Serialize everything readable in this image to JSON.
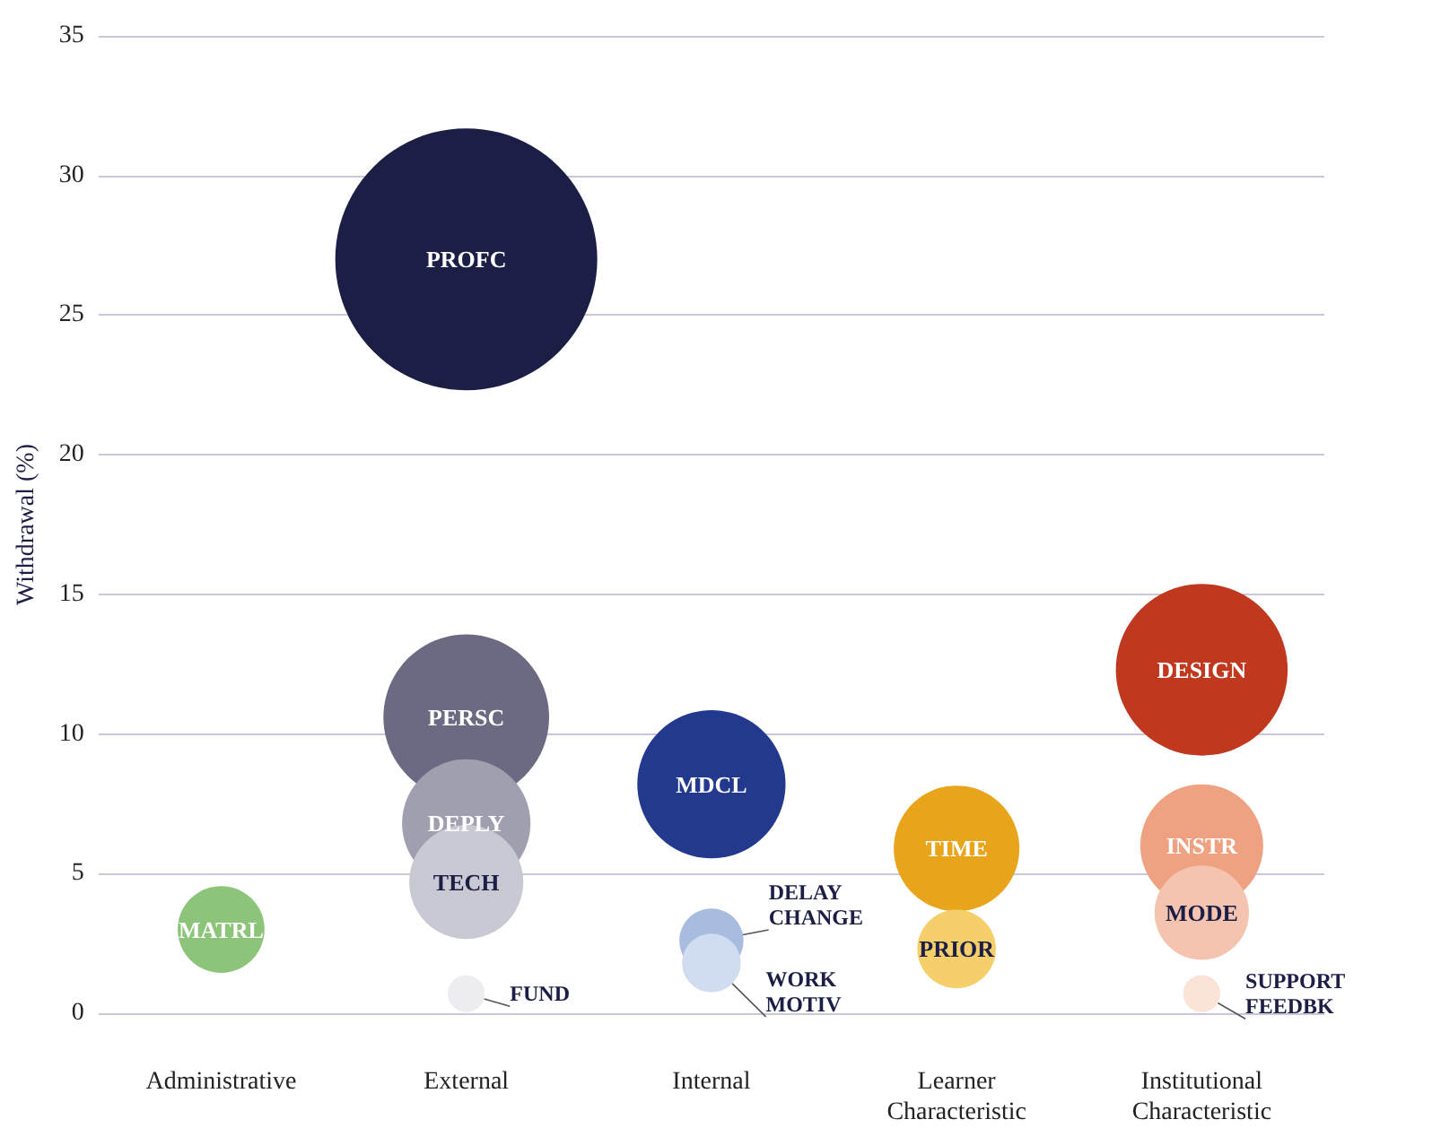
{
  "chart_data": {
    "type": "bubble",
    "ylabel": "Withdrawal (%)",
    "categories": [
      "Administrative",
      "External",
      "Internal",
      "Learner Characteristic",
      "Institutional Characteristic"
    ],
    "ylim": [
      0,
      35
    ],
    "yticks": [
      0,
      5,
      10,
      15,
      20,
      25,
      30,
      35
    ],
    "grid": "y",
    "legend": false,
    "series": [
      {
        "name": "MATRL",
        "color": "#8cc47a",
        "x": [
          "Administrative"
        ],
        "values": [
          3.0
        ],
        "sizes": [
          0.11
        ]
      },
      {
        "name": "PROFC",
        "color": "#1c1e45",
        "x": [
          "External"
        ],
        "values": [
          27.0
        ],
        "sizes": [
          1
        ]
      },
      {
        "name": "PERSC",
        "color": "#6b6a82",
        "x": [
          "External"
        ],
        "values": [
          10.6
        ],
        "sizes": [
          0.4
        ]
      },
      {
        "name": "DEPLY",
        "color": "#a09fb0",
        "x": [
          "External"
        ],
        "values": [
          6.8
        ],
        "sizes": [
          0.24
        ]
      },
      {
        "name": "TECH",
        "color": "#c9c9d3",
        "x": [
          "External"
        ],
        "values": [
          4.7
        ],
        "sizes": [
          0.19
        ]
      },
      {
        "name": "FUND",
        "color": "#ededf1",
        "x": [
          "External"
        ],
        "values": [
          0.7
        ],
        "sizes": [
          0.02
        ]
      },
      {
        "name": "MDCL",
        "color": "#23398e",
        "x": [
          "Internal"
        ],
        "values": [
          8.2
        ],
        "sizes": [
          0.32
        ]
      },
      {
        "name": "DELAY CHANGE",
        "color": "#a8bce0",
        "x": [
          "Internal"
        ],
        "values": [
          2.6
        ],
        "sizes": [
          0.06
        ]
      },
      {
        "name": "WORK MOTIV",
        "color": "#d0dcef",
        "x": [
          "Internal"
        ],
        "values": [
          1.8
        ],
        "sizes": [
          0.05
        ]
      },
      {
        "name": "TIME",
        "color": "#e8a51c",
        "x": [
          "Learner Characteristic"
        ],
        "values": [
          5.9
        ],
        "sizes": [
          0.23
        ]
      },
      {
        "name": "PRIOR",
        "color": "#f5cf6a",
        "x": [
          "Learner Characteristic"
        ],
        "values": [
          2.3
        ],
        "sizes": [
          0.09
        ]
      },
      {
        "name": "DESIGN",
        "color": "#c0391f",
        "x": [
          "Institutional Characteristic"
        ],
        "values": [
          12.3
        ],
        "sizes": [
          0.43
        ]
      },
      {
        "name": "INSTR",
        "color": "#eea282",
        "x": [
          "Institutional Characteristic"
        ],
        "values": [
          6.0
        ],
        "sizes": [
          0.22
        ]
      },
      {
        "name": "MODE",
        "color": "#f5c4b0",
        "x": [
          "Institutional Characteristic"
        ],
        "values": [
          3.6
        ],
        "sizes": [
          0.13
        ]
      },
      {
        "name": "SUPPORT FEEDBK",
        "color": "#fbe3d8",
        "x": [
          "Institutional Characteristic"
        ],
        "values": [
          0.7
        ],
        "sizes": [
          0.02
        ]
      }
    ]
  }
}
